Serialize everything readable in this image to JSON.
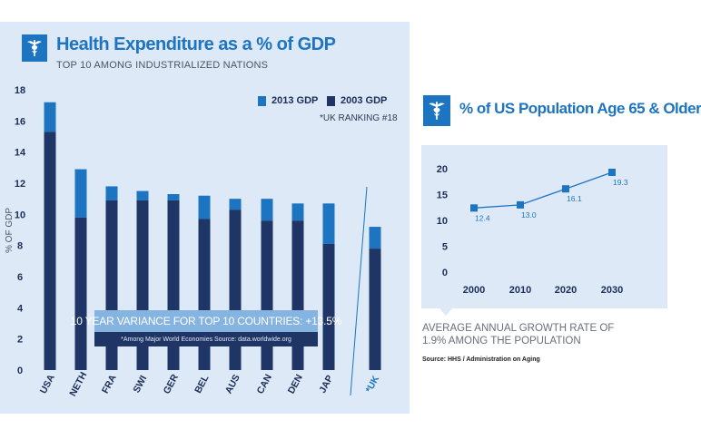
{
  "left_chart": {
    "title": "Health Expenditure as a % of GDP",
    "subtitle": "TOP 10 AMONG INDUSTRIALIZED NATIONS",
    "legend_2013": "2013 GDP",
    "legend_2003": "2003 GDP",
    "uk_ranking": "*UK RANKING #18",
    "variance_label": "10 YEAR VARIANCE FOR TOP 10 COUNTRIES: +13.5%",
    "variance_note": "*Among Major World Economies   Source: data.worldwide.org",
    "colors": {
      "gdp_2013": "#1d74c1",
      "gdp_2003": "#1f3566",
      "background": "#dde9f6"
    }
  },
  "right_chart": {
    "title": "% of US Population Age 65 & Older",
    "growth_text": "AVERAGE ANNUAL GROWTH RATE OF 1.9% AMONG THE POPULATION",
    "source": "Source: HHS / Administration on Aging",
    "colors": {
      "line": "#1d74c1",
      "background": "#dde9f6"
    }
  },
  "icons": {
    "logo": "caduceus-icon"
  },
  "chart_data": [
    {
      "type": "bar",
      "ylabel": "% OF GDP",
      "ylim": [
        0,
        18
      ],
      "yticks": [
        "0",
        "2",
        "4",
        "6",
        "8",
        "10",
        "12",
        "14",
        "16",
        "18"
      ],
      "categories": [
        "USA",
        "NETH",
        "FRA",
        "SWI",
        "GER",
        "BEL",
        "AUS",
        "CAN",
        "DEN",
        "JAP",
        "*UK"
      ],
      "series": [
        {
          "name": "2003 GDP",
          "values": [
            15.3,
            9.8,
            10.9,
            10.9,
            10.9,
            9.7,
            10.3,
            9.6,
            9.6,
            8.1,
            7.8
          ]
        },
        {
          "name": "2013 GDP",
          "values": [
            17.2,
            12.9,
            11.8,
            11.5,
            11.3,
            11.2,
            11.0,
            11.0,
            10.7,
            10.7,
            9.2
          ]
        }
      ],
      "grid": false,
      "legend_position": "top-right"
    },
    {
      "type": "line",
      "x": [
        "2000",
        "2010",
        "2020",
        "2030"
      ],
      "values": [
        12.4,
        13.0,
        16.1,
        19.3
      ],
      "data_labels": [
        "12.4",
        "13.0",
        "16.1",
        "19.3"
      ],
      "yticks": [
        "0",
        "5",
        "10",
        "15",
        "20"
      ],
      "ylim": [
        0,
        20
      ],
      "grid": false
    }
  ]
}
